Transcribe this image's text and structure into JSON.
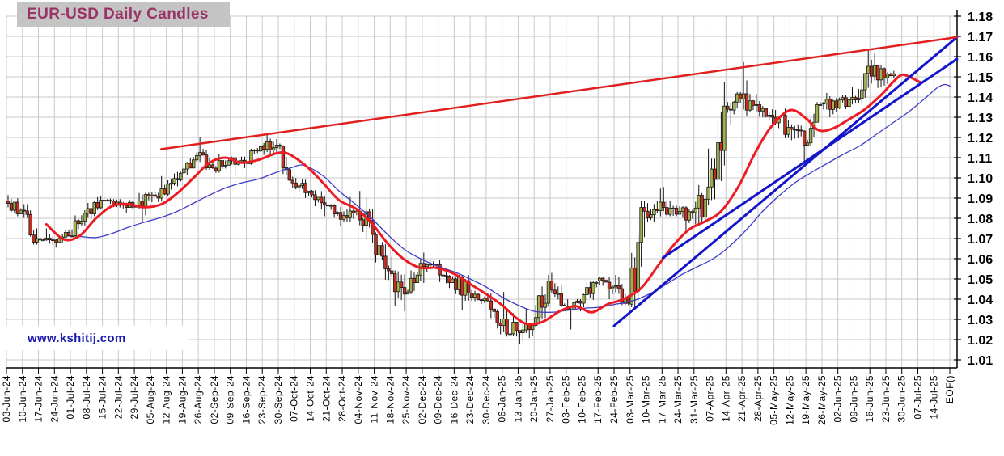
{
  "title": "EUR-USD Daily Candles",
  "watermark": "www.kshitij.com",
  "colors": {
    "title_fg": "#993366",
    "title_bg": "#c4c4c4",
    "watermark_fg": "#1c1cb0",
    "grid": "#c9c9c9",
    "axis": "#000000",
    "candle_up": "#9fb04c",
    "candle_down": "#c52f21",
    "candle_border": "#1a1a1a",
    "wick": "#111111",
    "ma_fast": "#ec1c24",
    "ma_slow": "#3c3cc8",
    "trendline_red": "#e01f1f",
    "trendline_blue": "#1414cc"
  },
  "chart_data": {
    "type": "candlestick",
    "title": "EUR-USD Daily Candles",
    "grid": true,
    "legend": false,
    "y_axis": {
      "min": 1.01,
      "max": 1.18,
      "step": 0.01,
      "tick_labels": [
        "1.18",
        "1.17",
        "1.16",
        "1.15",
        "1.14",
        "1.13",
        "1.12",
        "1.11",
        "1.10",
        "1.09",
        "1.08",
        "1.07",
        "1.06",
        "1.05",
        "1.04",
        "1.03",
        "1.02",
        "1.01"
      ]
    },
    "x_tick_labels": [
      "03-Jun-24",
      "10-Jun-24",
      "17-Jun-24",
      "24-Jun-24",
      "01-Jul-24",
      "08-Jul-24",
      "15-Jul-24",
      "22-Jul-24",
      "29-Jul-24",
      "05-Aug-24",
      "12-Aug-24",
      "19-Aug-24",
      "26-Aug-24",
      "02-Sep-24",
      "09-Sep-24",
      "16-Sep-24",
      "23-Sep-24",
      "30-Sep-24",
      "07-Oct-24",
      "14-Oct-24",
      "21-Oct-24",
      "28-Oct-24",
      "04-Nov-24",
      "11-Nov-24",
      "18-Nov-24",
      "25-Nov-24",
      "02-Dec-24",
      "09-Dec-24",
      "16-Dec-24",
      "23-Dec-24",
      "30-Dec-24",
      "06-Jan-25",
      "13-Jan-25",
      "20-Jan-25",
      "27-Jan-25",
      "03-Feb-25",
      "10-Feb-25",
      "17-Feb-25",
      "24-Feb-25",
      "03-Mar-25",
      "10-Mar-25",
      "17-Mar-25",
      "24-Mar-25",
      "31-Mar-25",
      "07-Apr-25",
      "14-Apr-25",
      "21-Apr-25",
      "28-Apr-25",
      "05-May-25",
      "12-May-25",
      "19-May-25",
      "26-May-25",
      "02-Jun-25",
      "09-Jun-25",
      "16-Jun-25",
      "23-Jun-25",
      "30-Jun-25",
      "07-Jul-25",
      "14-Jul-25",
      "EOF()"
    ],
    "weekly_ohlc": [
      [
        "03-Jun-24",
        1.0885,
        1.0915,
        1.081,
        1.084
      ],
      [
        "10-Jun-24",
        1.084,
        1.087,
        1.067,
        1.07
      ],
      [
        "17-Jun-24",
        1.07,
        1.075,
        1.0668,
        1.0692
      ],
      [
        "24-Jun-24",
        1.0692,
        1.0745,
        1.0655,
        1.0713
      ],
      [
        "01-Jul-24",
        1.0713,
        1.084,
        1.0705,
        1.0825
      ],
      [
        "08-Jul-24",
        1.0825,
        1.091,
        1.08,
        1.089
      ],
      [
        "15-Jul-24",
        1.089,
        1.0922,
        1.0855,
        1.088
      ],
      [
        "22-Jul-24",
        1.088,
        1.0895,
        1.0825,
        1.0855
      ],
      [
        "29-Jul-24",
        1.0855,
        1.0927,
        1.0777,
        1.091
      ],
      [
        "05-Aug-24",
        1.091,
        1.1009,
        1.088,
        1.092
      ],
      [
        "12-Aug-24",
        1.092,
        1.103,
        1.091,
        1.1025
      ],
      [
        "19-Aug-24",
        1.1025,
        1.1125,
        1.1015,
        1.111
      ],
      [
        "26-Aug-24",
        1.111,
        1.12,
        1.104,
        1.1048
      ],
      [
        "02-Sep-24",
        1.1048,
        1.112,
        1.1025,
        1.1085
      ],
      [
        "09-Sep-24",
        1.1085,
        1.1105,
        1.101,
        1.1075
      ],
      [
        "16-Sep-24",
        1.1075,
        1.116,
        1.1065,
        1.116
      ],
      [
        "23-Sep-24",
        1.116,
        1.1215,
        1.111,
        1.1162
      ],
      [
        "30-Sep-24",
        1.1162,
        1.117,
        1.095,
        1.0975
      ],
      [
        "07-Oct-24",
        1.0975,
        1.1,
        1.09,
        1.0935
      ],
      [
        "14-Oct-24",
        1.0935,
        1.094,
        1.081,
        1.0865
      ],
      [
        "21-Oct-24",
        1.0865,
        1.087,
        1.076,
        1.0795
      ],
      [
        "28-Oct-24",
        1.0795,
        1.0905,
        1.078,
        1.0835
      ],
      [
        "04-Nov-24",
        1.0835,
        1.0935,
        1.068,
        1.072
      ],
      [
        "11-Nov-24",
        1.072,
        1.073,
        1.0495,
        1.054
      ],
      [
        "18-Nov-24",
        1.054,
        1.061,
        1.034,
        1.0425
      ],
      [
        "25-Nov-24",
        1.0425,
        1.06,
        1.0425,
        1.0577
      ],
      [
        "02-Dec-24",
        1.0577,
        1.063,
        1.048,
        1.057
      ],
      [
        "09-Dec-24",
        1.057,
        1.0595,
        1.0455,
        1.05
      ],
      [
        "16-Dec-24",
        1.05,
        1.052,
        1.0344,
        1.043
      ],
      [
        "23-Dec-24",
        1.043,
        1.0445,
        1.0375,
        1.0405
      ],
      [
        "30-Dec-24",
        1.0405,
        1.043,
        1.0226,
        1.027
      ],
      [
        "06-Jan-25",
        1.027,
        1.0435,
        1.0215,
        1.0245
      ],
      [
        "13-Jan-25",
        1.0245,
        1.0355,
        1.0178,
        1.027
      ],
      [
        "20-Jan-25",
        1.027,
        1.052,
        1.026,
        1.049
      ],
      [
        "27-Jan-25",
        1.049,
        1.053,
        1.036,
        1.0362
      ],
      [
        "03-Feb-25",
        1.0362,
        1.04,
        1.025,
        1.038
      ],
      [
        "10-Feb-25",
        1.038,
        1.049,
        1.036,
        1.049
      ],
      [
        "17-Feb-25",
        1.049,
        1.051,
        1.04,
        1.046
      ],
      [
        "24-Feb-25",
        1.046,
        1.052,
        1.037,
        1.0375
      ],
      [
        "03-Mar-25",
        1.0375,
        1.0888,
        1.036,
        1.0835
      ],
      [
        "10-Mar-25",
        1.0835,
        1.0947,
        1.078,
        1.088
      ],
      [
        "17-Mar-25",
        1.088,
        1.0955,
        1.081,
        1.082
      ],
      [
        "24-Mar-25",
        1.082,
        1.086,
        1.0733,
        1.0828
      ],
      [
        "31-Mar-25",
        1.0828,
        1.1145,
        1.077,
        1.0955
      ],
      [
        "07-Apr-25",
        1.0955,
        1.1473,
        1.089,
        1.1355
      ],
      [
        "14-Apr-25",
        1.1355,
        1.1425,
        1.1264,
        1.139
      ],
      [
        "21-Apr-25",
        1.139,
        1.1573,
        1.1308,
        1.1362
      ],
      [
        "28-Apr-25",
        1.1362,
        1.138,
        1.1265,
        1.13
      ],
      [
        "05-May-25",
        1.13,
        1.1375,
        1.1197,
        1.125
      ],
      [
        "12-May-25",
        1.125,
        1.1265,
        1.1065,
        1.1162
      ],
      [
        "19-May-25",
        1.1162,
        1.1375,
        1.116,
        1.1365
      ],
      [
        "26-May-25",
        1.1365,
        1.142,
        1.13,
        1.1347
      ],
      [
        "02-Jun-25",
        1.1347,
        1.145,
        1.134,
        1.1398
      ],
      [
        "09-Jun-25",
        1.1398,
        1.1631,
        1.137,
        1.1552
      ],
      [
        "16-Jun-25",
        1.1552,
        1.1615,
        1.1445,
        1.1495
      ],
      [
        "23-Jun-25",
        1.1495,
        1.153,
        1.1465,
        1.1515,
        3
      ]
    ],
    "series": [
      {
        "name": "ma-fast-red",
        "style": "ma_fast",
        "width": 3,
        "points": [
          [
            2.5,
            1.077
          ],
          [
            3.6,
            1.0695
          ],
          [
            4.6,
            1.0715
          ],
          [
            5.6,
            1.08
          ],
          [
            6.6,
            1.086
          ],
          [
            7.6,
            1.087
          ],
          [
            8.6,
            1.0855
          ],
          [
            9.7,
            1.087
          ],
          [
            10.7,
            1.0925
          ],
          [
            11.7,
            1.1
          ],
          [
            12.7,
            1.1075
          ],
          [
            13.7,
            1.11
          ],
          [
            14.7,
            1.1075
          ],
          [
            15.8,
            1.109
          ],
          [
            16.8,
            1.112
          ],
          [
            17.6,
            1.112
          ],
          [
            18.8,
            1.1055
          ],
          [
            19.8,
            1.0975
          ],
          [
            20.8,
            1.089
          ],
          [
            21.9,
            1.0845
          ],
          [
            22.9,
            1.077
          ],
          [
            23.9,
            1.067
          ],
          [
            24.9,
            1.0595
          ],
          [
            25.9,
            1.0555
          ],
          [
            26.9,
            1.0555
          ],
          [
            28.0,
            1.0525
          ],
          [
            29.0,
            1.0475
          ],
          [
            30.0,
            1.0425
          ],
          [
            31.0,
            1.037
          ],
          [
            32.0,
            1.03
          ],
          [
            32.7,
            1.0275
          ],
          [
            33.6,
            1.029
          ],
          [
            34.6,
            1.034
          ],
          [
            35.6,
            1.0365
          ],
          [
            36.6,
            1.0335
          ],
          [
            37.6,
            1.0375
          ],
          [
            38.6,
            1.04
          ],
          [
            39.7,
            1.0455
          ],
          [
            40.7,
            1.056
          ],
          [
            41.7,
            1.0665
          ],
          [
            42.7,
            1.0745
          ],
          [
            43.7,
            1.0785
          ],
          [
            44.7,
            1.0835
          ],
          [
            45.8,
            1.096
          ],
          [
            46.8,
            1.112
          ],
          [
            47.8,
            1.125
          ],
          [
            49.0,
            1.1335
          ],
          [
            50.0,
            1.1295
          ],
          [
            50.8,
            1.1235
          ],
          [
            51.7,
            1.1245
          ],
          [
            52.7,
            1.129
          ],
          [
            53.7,
            1.134
          ],
          [
            54.7,
            1.141
          ],
          [
            55.4,
            1.147
          ],
          [
            56.0,
            1.151
          ],
          [
            56.6,
            1.1495
          ],
          [
            57.2,
            1.147
          ]
        ]
      },
      {
        "name": "ma-slow-blue",
        "style": "ma_slow",
        "width": 1.3,
        "points": [
          [
            4.6,
            1.071
          ],
          [
            5.6,
            1.0705
          ],
          [
            6.6,
            1.0725
          ],
          [
            7.6,
            1.0755
          ],
          [
            8.6,
            1.078
          ],
          [
            9.7,
            1.0805
          ],
          [
            10.7,
            1.0835
          ],
          [
            11.7,
            1.0875
          ],
          [
            12.7,
            1.0915
          ],
          [
            13.7,
            1.095
          ],
          [
            14.7,
            1.0975
          ],
          [
            15.8,
            1.0995
          ],
          [
            16.8,
            1.1025
          ],
          [
            17.8,
            1.105
          ],
          [
            18.6,
            1.1062
          ],
          [
            19.8,
            1.101
          ],
          [
            20.8,
            1.0935
          ],
          [
            21.9,
            1.0865
          ],
          [
            22.9,
            1.0795
          ],
          [
            23.9,
            1.0715
          ],
          [
            24.9,
            1.0645
          ],
          [
            25.9,
            1.06
          ],
          [
            26.9,
            1.0565
          ],
          [
            28.0,
            1.0535
          ],
          [
            29.0,
            1.05
          ],
          [
            30.0,
            1.046
          ],
          [
            31.0,
            1.041
          ],
          [
            32.0,
            1.037
          ],
          [
            33.0,
            1.034
          ],
          [
            34.1,
            1.0335
          ],
          [
            35.1,
            1.0345
          ],
          [
            36.1,
            1.0355
          ],
          [
            37.1,
            1.036
          ],
          [
            38.1,
            1.0375
          ],
          [
            39.1,
            1.039
          ],
          [
            40.2,
            1.0425
          ],
          [
            41.2,
            1.047
          ],
          [
            42.2,
            1.052
          ],
          [
            43.2,
            1.056
          ],
          [
            44.2,
            1.06
          ],
          [
            45.2,
            1.066
          ],
          [
            46.3,
            1.0745
          ],
          [
            47.3,
            1.0835
          ],
          [
            48.3,
            1.091
          ],
          [
            49.3,
            1.0975
          ],
          [
            50.3,
            1.1025
          ],
          [
            51.3,
            1.107
          ],
          [
            52.3,
            1.1115
          ],
          [
            53.4,
            1.116
          ],
          [
            54.4,
            1.1215
          ],
          [
            55.4,
            1.127
          ],
          [
            56.4,
            1.1325
          ],
          [
            57.4,
            1.139
          ],
          [
            58.2,
            1.1445
          ],
          [
            58.7,
            1.1462
          ],
          [
            59.1,
            1.145
          ]
        ]
      }
    ],
    "trendlines": [
      {
        "name": "resistance-red",
        "style": "trendline_red",
        "width": 2.4,
        "from": [
          9.67,
          1.1142
        ],
        "to": [
          59.45,
          1.1696
        ]
      },
      {
        "name": "support-blue-a",
        "style": "trendline_blue",
        "width": 3.0,
        "from": [
          38.0,
          1.0268
        ],
        "to": [
          59.45,
          1.1696
        ]
      },
      {
        "name": "support-blue-b",
        "style": "trendline_blue",
        "width": 3.0,
        "from": [
          41.05,
          1.0604
        ],
        "to": [
          59.45,
          1.1588
        ]
      }
    ]
  }
}
